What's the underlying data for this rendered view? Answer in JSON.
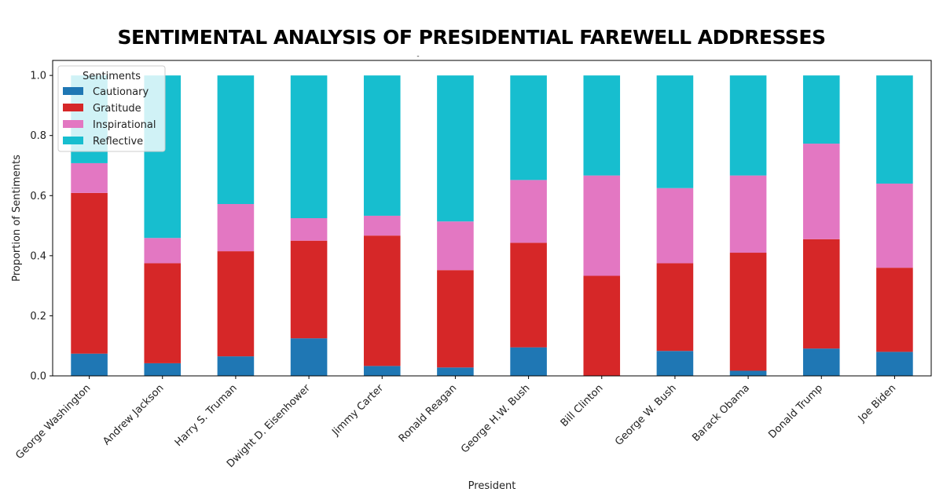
{
  "chart_data": {
    "type": "bar",
    "stacked": true,
    "title": "SENTIMENTAL ANALYSIS OF PRESIDENTIAL FAREWELL ADDRESSES",
    "subtitle": "-",
    "xlabel": "President",
    "ylabel": "Proportion of Sentiments",
    "ylim": [
      0,
      1.05
    ],
    "yticks": [
      "0.0",
      "0.2",
      "0.4",
      "0.6",
      "0.8",
      "1.0"
    ],
    "grid": false,
    "legend": {
      "title": "Sentiments",
      "placement": "top-left"
    },
    "categories": [
      "George Washington",
      "Andrew Jackson",
      "Harry S. Truman",
      "Dwight D. Eisenhower",
      "Jimmy Carter",
      "Ronald Reagan",
      "George H.W. Bush",
      "Bill Clinton",
      "George W. Bush",
      "Barack Obama",
      "Donald Trump",
      "Joe Biden"
    ],
    "series": [
      {
        "name": "Cautionary",
        "color": "#1f77b4",
        "values": [
          0.074,
          0.042,
          0.065,
          0.125,
          0.033,
          0.028,
          0.095,
          0.0,
          0.083,
          0.017,
          0.091,
          0.08
        ]
      },
      {
        "name": "Gratitude",
        "color": "#d62728",
        "values": [
          0.535,
          0.333,
          0.35,
          0.325,
          0.434,
          0.324,
          0.348,
          0.333,
          0.292,
          0.393,
          0.364,
          0.28
        ]
      },
      {
        "name": "Inspirational",
        "color": "#e377c2",
        "values": [
          0.099,
          0.084,
          0.157,
          0.075,
          0.066,
          0.162,
          0.209,
          0.334,
          0.25,
          0.257,
          0.318,
          0.28
        ]
      },
      {
        "name": "Reflective",
        "color": "#17becf",
        "values": [
          0.292,
          0.541,
          0.428,
          0.475,
          0.467,
          0.486,
          0.348,
          0.333,
          0.375,
          0.333,
          0.227,
          0.36
        ]
      }
    ]
  }
}
